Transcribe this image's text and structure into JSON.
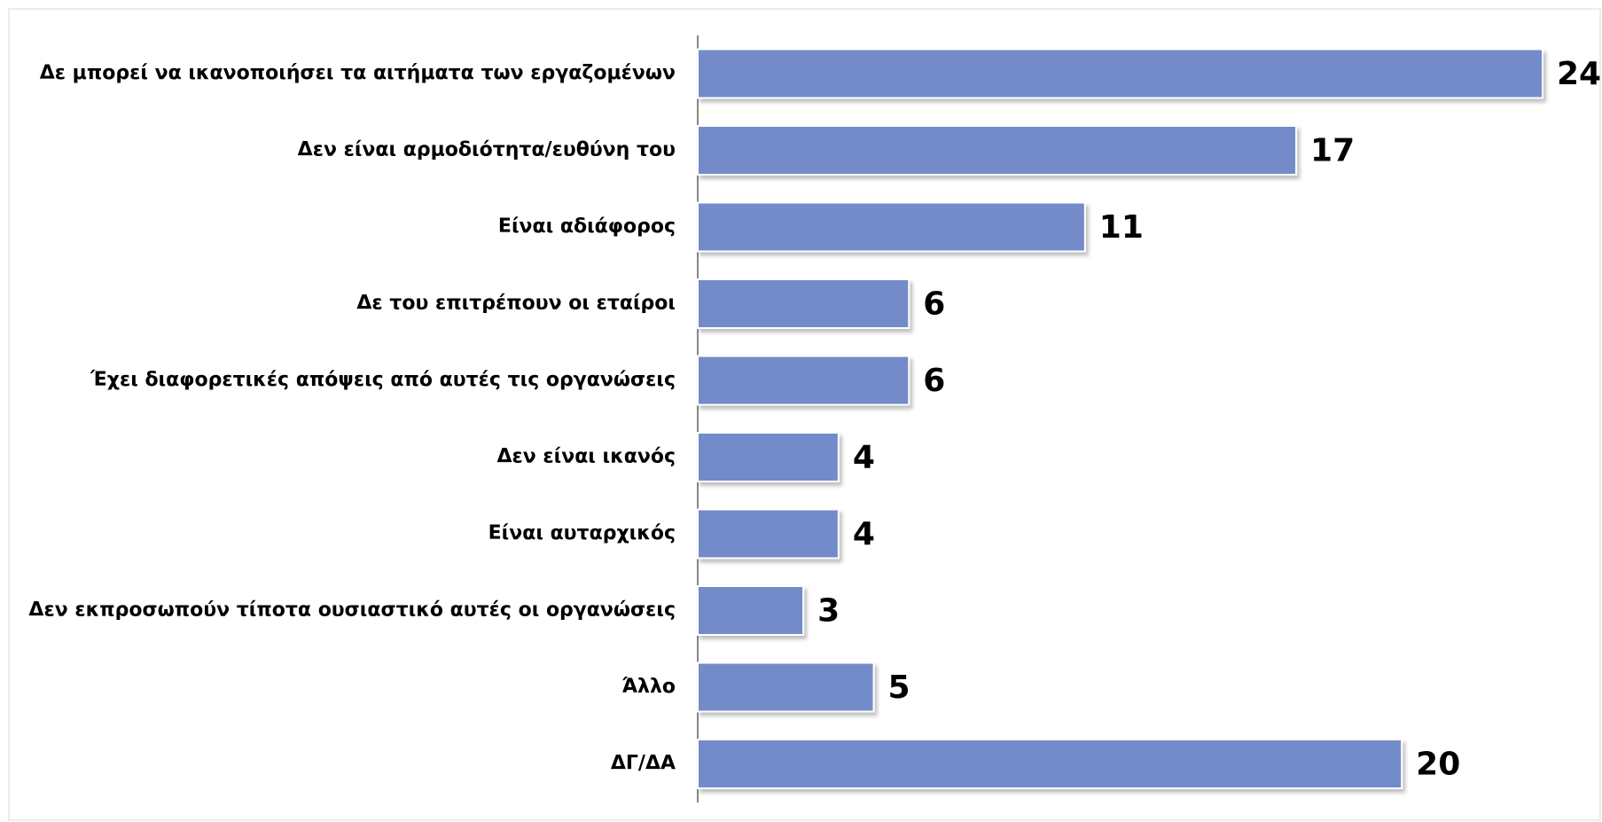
{
  "chart_data": {
    "type": "bar",
    "categories": [
      "Δε μπορεί να ικανοποιήσει τα αιτήματα των εργαζομένων",
      "Δεν είναι αρμοδιότητα/ευθύνη του",
      "Είναι αδιάφορος",
      "Δε του επιτρέπουν οι εταίροι",
      "Έχει διαφορετικές απόψεις από αυτές τις οργανώσεις",
      "Δεν είναι ικανός",
      "Είναι αυταρχικός",
      "Δεν εκπροσωπούν τίποτα ουσιαστικό αυτές οι οργανώσεις",
      "Άλλο",
      "ΔΓ/ΔΑ"
    ],
    "values": [
      24,
      17,
      11,
      6,
      6,
      4,
      4,
      3,
      5,
      20
    ],
    "color": "#738bc8"
  }
}
